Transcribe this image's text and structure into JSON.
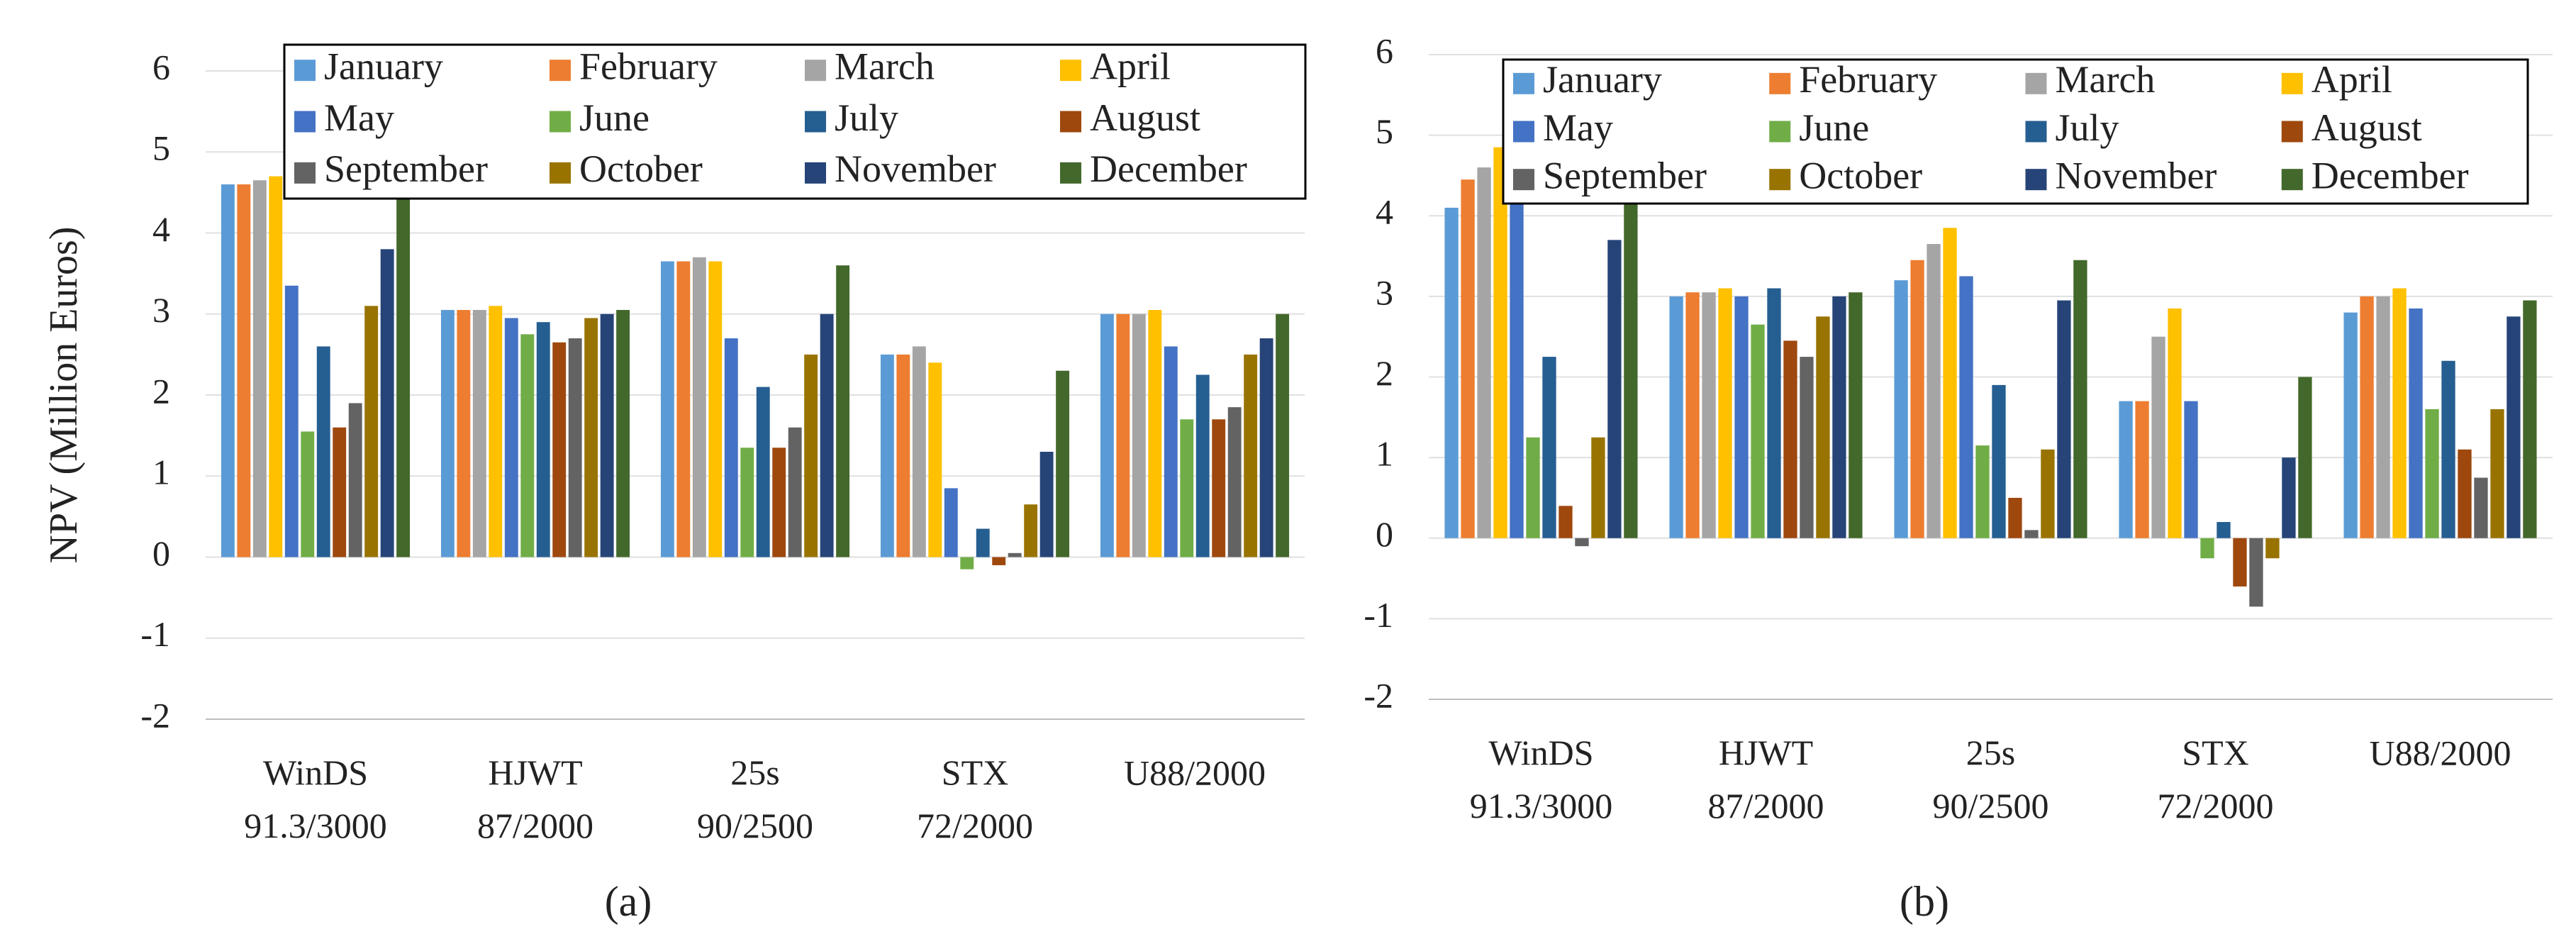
{
  "chart_data": [
    {
      "type": "bar",
      "caption": "(a)",
      "y_label": "NPV (Million Euros)",
      "categories": [
        "WinDS\n91.3/3000",
        "HJWT\n87/2000",
        "25s\n90/2500",
        "STX\n72/2000",
        "U88/2000"
      ],
      "ylim": [
        -2,
        6
      ],
      "yticks": [
        -2,
        -1,
        0,
        1,
        2,
        3,
        4,
        5,
        6
      ],
      "grid": true,
      "series": [
        {
          "name": "January",
          "color": "#5b9bd5",
          "values": [
            4.6,
            3.05,
            3.65,
            2.5,
            3.0
          ]
        },
        {
          "name": "February",
          "color": "#ed7d31",
          "values": [
            4.6,
            3.05,
            3.65,
            2.5,
            3.0
          ]
        },
        {
          "name": "March",
          "color": "#a5a5a5",
          "values": [
            4.65,
            3.05,
            3.7,
            2.6,
            3.0
          ]
        },
        {
          "name": "April",
          "color": "#ffc000",
          "values": [
            4.7,
            3.1,
            3.65,
            2.4,
            3.05
          ]
        },
        {
          "name": "May",
          "color": "#4472c4",
          "values": [
            3.35,
            2.95,
            2.7,
            0.85,
            2.6
          ]
        },
        {
          "name": "June",
          "color": "#70ad47",
          "values": [
            1.55,
            2.75,
            1.35,
            -0.15,
            1.7
          ]
        },
        {
          "name": "July",
          "color": "#255e91",
          "values": [
            2.6,
            2.9,
            2.1,
            0.35,
            2.25
          ]
        },
        {
          "name": "August",
          "color": "#9e480e",
          "values": [
            1.6,
            2.65,
            1.35,
            -0.1,
            1.7
          ]
        },
        {
          "name": "September",
          "color": "#636363",
          "values": [
            1.9,
            2.7,
            1.6,
            0.05,
            1.85
          ]
        },
        {
          "name": "October",
          "color": "#997300",
          "values": [
            3.1,
            2.95,
            2.5,
            0.65,
            2.5
          ]
        },
        {
          "name": "November",
          "color": "#264478",
          "values": [
            3.8,
            3.0,
            3.0,
            1.3,
            2.7
          ]
        },
        {
          "name": "December",
          "color": "#43682b",
          "values": [
            4.6,
            3.05,
            3.6,
            2.3,
            3.0
          ]
        }
      ]
    },
    {
      "type": "bar",
      "caption": "(b)",
      "categories": [
        "WinDS\n91.3/3000",
        "HJWT\n87/2000",
        "25s\n90/2500",
        "STX\n72/2000",
        "U88/2000"
      ],
      "ylim": [
        -2,
        6
      ],
      "yticks": [
        -2,
        -1,
        0,
        1,
        2,
        3,
        4,
        5,
        6
      ],
      "grid": true,
      "series": [
        {
          "name": "January",
          "color": "#5b9bd5",
          "values": [
            4.1,
            3.0,
            3.2,
            1.7,
            2.8
          ]
        },
        {
          "name": "February",
          "color": "#ed7d31",
          "values": [
            4.45,
            3.05,
            3.45,
            1.7,
            3.0
          ]
        },
        {
          "name": "March",
          "color": "#a5a5a5",
          "values": [
            4.6,
            3.05,
            3.65,
            2.5,
            3.0
          ]
        },
        {
          "name": "April",
          "color": "#ffc000",
          "values": [
            4.85,
            3.1,
            3.85,
            2.85,
            3.1
          ]
        },
        {
          "name": "May",
          "color": "#4472c4",
          "values": [
            4.3,
            3.0,
            3.25,
            1.7,
            2.85
          ]
        },
        {
          "name": "June",
          "color": "#70ad47",
          "values": [
            1.25,
            2.65,
            1.15,
            -0.25,
            1.6
          ]
        },
        {
          "name": "July",
          "color": "#255e91",
          "values": [
            2.25,
            3.1,
            1.9,
            0.2,
            2.2
          ]
        },
        {
          "name": "August",
          "color": "#9e480e",
          "values": [
            0.4,
            2.45,
            0.5,
            -0.6,
            1.1
          ]
        },
        {
          "name": "September",
          "color": "#636363",
          "values": [
            -0.1,
            2.25,
            0.1,
            -0.85,
            0.75
          ]
        },
        {
          "name": "October",
          "color": "#997300",
          "values": [
            1.25,
            2.75,
            1.1,
            -0.25,
            1.6
          ]
        },
        {
          "name": "November",
          "color": "#264478",
          "values": [
            3.7,
            3.0,
            2.95,
            1.0,
            2.75
          ]
        },
        {
          "name": "December",
          "color": "#43682b",
          "values": [
            4.2,
            3.05,
            3.45,
            2.0,
            2.95
          ]
        }
      ]
    }
  ]
}
